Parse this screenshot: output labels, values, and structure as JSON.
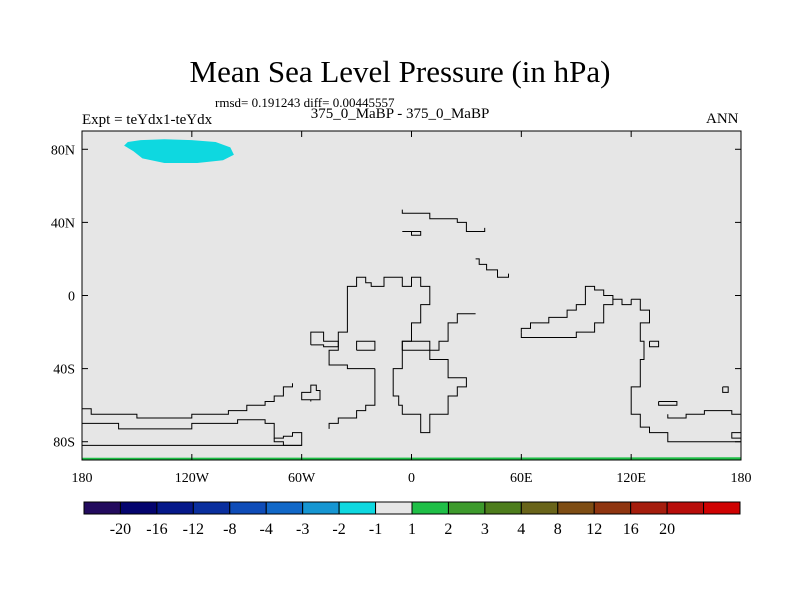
{
  "title": "Mean Sea Level Pressure (in hPa)",
  "stats": "rmsd= 0.191243 diff= 0.00445557",
  "left_label": "Expt = teYdx1-teYdx",
  "center_label": "375_0_MaBP - 375_0_MaBP",
  "right_label": "ANN",
  "chart_data": {
    "type": "heatmap",
    "title": "Mean Sea Level Pressure (in hPa)",
    "xlim": [
      -180,
      180
    ],
    "ylim": [
      -90,
      90
    ],
    "x_ticks": [
      {
        "value": -180,
        "label": "180"
      },
      {
        "value": -120,
        "label": "120W"
      },
      {
        "value": -60,
        "label": "60W"
      },
      {
        "value": 0,
        "label": "0"
      },
      {
        "value": 60,
        "label": "60E"
      },
      {
        "value": 120,
        "label": "120E"
      },
      {
        "value": 180,
        "label": "180"
      }
    ],
    "y_ticks": [
      {
        "value": 80,
        "label": "80N"
      },
      {
        "value": 40,
        "label": "40N"
      },
      {
        "value": 0,
        "label": "0"
      },
      {
        "value": -40,
        "label": "40S"
      },
      {
        "value": -80,
        "label": "80S"
      }
    ],
    "background_color": "#e6e6e6",
    "colorbar": {
      "colors": [
        "#230b5e",
        "#04046e",
        "#05188a",
        "#0a2f9e",
        "#0e4cb8",
        "#1168c8",
        "#1696d2",
        "#0ed8e0",
        "#e6e6e6",
        "#1fbf47",
        "#3d9a2c",
        "#4d7d1c",
        "#69641a",
        "#7e4d14",
        "#8f3510",
        "#a51d0d",
        "#b80d0a",
        "#cf0202"
      ],
      "labels": [
        "-20",
        "-16",
        "-12",
        "-8",
        "-4",
        "-3",
        "-2",
        "-1",
        "1",
        "2",
        "3",
        "4",
        "8",
        "12",
        "16",
        "20"
      ]
    },
    "regions": [
      {
        "label": "-2 to -1",
        "color": "#0ed8e0",
        "outline": [
          [
            -155,
            84
          ],
          [
            -148,
            85
          ],
          [
            -135,
            85.5
          ],
          [
            -120,
            85
          ],
          [
            -107,
            84
          ],
          [
            -99,
            81
          ],
          [
            -97,
            77
          ],
          [
            -103,
            74
          ],
          [
            -117,
            72.5
          ],
          [
            -135,
            72.5
          ],
          [
            -147,
            75
          ],
          [
            -152,
            79
          ],
          [
            -157,
            82
          ]
        ]
      },
      {
        "label": "1 to 2",
        "color": "#1fbf47",
        "outline": [
          [
            -180,
            -90
          ],
          [
            180,
            -90
          ],
          [
            180,
            -88.5
          ],
          [
            -180,
            -88.8
          ]
        ]
      }
    ],
    "coastlines": [
      [
        [
          -5,
          47
        ],
        [
          -5,
          45
        ],
        [
          10,
          45
        ],
        [
          10,
          42
        ],
        [
          25,
          42
        ],
        [
          25,
          40
        ],
        [
          30,
          40
        ],
        [
          30,
          35
        ],
        [
          40,
          35
        ],
        [
          40,
          37
        ]
      ],
      [
        [
          -5,
          35
        ],
        [
          5,
          35
        ],
        [
          5,
          33
        ],
        [
          0,
          33
        ],
        [
          0,
          35
        ]
      ],
      [
        [
          35,
          20
        ],
        [
          37,
          20
        ],
        [
          37,
          17
        ],
        [
          41,
          17
        ],
        [
          41,
          14
        ],
        [
          47,
          14
        ],
        [
          47,
          10
        ],
        [
          48,
          10
        ],
        [
          53,
          10
        ],
        [
          53,
          12
        ]
      ],
      [
        [
          -20,
          -40
        ],
        [
          -20,
          -60
        ],
        [
          -25,
          -60
        ],
        [
          -25,
          -63
        ],
        [
          -30,
          -63
        ],
        [
          -30,
          -67
        ],
        [
          -40,
          -67
        ],
        [
          -40,
          -70
        ],
        [
          -45,
          -70
        ],
        [
          -45,
          -73
        ]
      ],
      [
        [
          -20,
          -40
        ],
        [
          -35,
          -40
        ],
        [
          -35,
          -38
        ],
        [
          -45,
          -38
        ],
        [
          -45,
          -30
        ],
        [
          -40,
          -30
        ],
        [
          -40,
          -20
        ],
        [
          -35,
          -20
        ],
        [
          -35,
          5
        ],
        [
          -30,
          5
        ],
        [
          -30,
          10
        ],
        [
          -25,
          10
        ],
        [
          -25,
          7
        ],
        [
          -22,
          7
        ],
        [
          -22,
          5
        ],
        [
          -15,
          5
        ],
        [
          -15,
          10
        ],
        [
          -5,
          10
        ],
        [
          -5,
          5
        ],
        [
          0,
          5
        ],
        [
          0,
          10
        ],
        [
          5,
          10
        ],
        [
          5,
          5
        ],
        [
          10,
          5
        ],
        [
          10,
          -5
        ],
        [
          5,
          -5
        ],
        [
          5,
          -15
        ],
        [
          0,
          -15
        ],
        [
          0,
          -25
        ],
        [
          -5,
          -25
        ],
        [
          -5,
          -40
        ],
        [
          -10,
          -40
        ],
        [
          -10,
          -55
        ],
        [
          -7,
          -55
        ],
        [
          -7,
          -60
        ],
        [
          -5,
          -60
        ],
        [
          -5,
          -65
        ],
        [
          5,
          -65
        ],
        [
          5,
          -75
        ],
        [
          10,
          -75
        ],
        [
          10,
          -65
        ],
        [
          20,
          -65
        ],
        [
          20,
          -55
        ],
        [
          25,
          -55
        ],
        [
          25,
          -50
        ],
        [
          30,
          -50
        ],
        [
          30,
          -45
        ],
        [
          20,
          -45
        ],
        [
          20,
          -35
        ],
        [
          10,
          -35
        ],
        [
          10,
          -30
        ],
        [
          15,
          -30
        ],
        [
          15,
          -25
        ],
        [
          20,
          -25
        ],
        [
          20,
          -15
        ],
        [
          25,
          -15
        ],
        [
          25,
          -10
        ],
        [
          35,
          -10
        ]
      ],
      [
        [
          -55,
          -27
        ],
        [
          -55,
          -20
        ],
        [
          -48,
          -20
        ],
        [
          -48,
          -25
        ],
        [
          -40,
          -25
        ],
        [
          -40,
          -28
        ],
        [
          -48,
          -28
        ],
        [
          -48,
          -27
        ],
        [
          -55,
          -27
        ]
      ],
      [
        [
          -5,
          -30
        ],
        [
          -5,
          -25
        ],
        [
          10,
          -25
        ],
        [
          10,
          -30
        ],
        [
          -5,
          -30
        ]
      ],
      [
        [
          -30,
          -30
        ],
        [
          -30,
          -25
        ],
        [
          -20,
          -25
        ],
        [
          -20,
          -30
        ],
        [
          -30,
          -30
        ]
      ],
      [
        [
          60,
          -20
        ],
        [
          60,
          -23
        ],
        [
          90,
          -23
        ],
        [
          90,
          -20
        ],
        [
          100,
          -20
        ],
        [
          100,
          -15
        ],
        [
          105,
          -15
        ],
        [
          105,
          -5
        ],
        [
          110,
          -5
        ],
        [
          110,
          -2
        ],
        [
          115,
          -2
        ],
        [
          115,
          -5
        ],
        [
          120,
          -5
        ],
        [
          120,
          -2
        ]
      ],
      [
        [
          60,
          -20
        ],
        [
          60,
          -18
        ],
        [
          65,
          -18
        ],
        [
          65,
          -15
        ],
        [
          75,
          -15
        ],
        [
          75,
          -12
        ],
        [
          85,
          -12
        ],
        [
          85,
          -8
        ],
        [
          90,
          -8
        ],
        [
          90,
          -5
        ],
        [
          95,
          -5
        ],
        [
          95,
          5
        ],
        [
          100,
          5
        ],
        [
          100,
          3
        ],
        [
          105,
          3
        ],
        [
          105,
          0
        ],
        [
          110,
          0
        ],
        [
          110,
          -2
        ]
      ],
      [
        [
          120,
          -2
        ],
        [
          125,
          -2
        ],
        [
          125,
          -8
        ],
        [
          130,
          -8
        ],
        [
          130,
          -15
        ],
        [
          125,
          -15
        ],
        [
          125,
          -25
        ],
        [
          127,
          -25
        ],
        [
          127,
          -35
        ],
        [
          125,
          -35
        ],
        [
          125,
          -50
        ],
        [
          120,
          -50
        ],
        [
          120,
          -65
        ],
        [
          125,
          -65
        ],
        [
          125,
          -72
        ],
        [
          130,
          -72
        ],
        [
          130,
          -75
        ],
        [
          140,
          -75
        ],
        [
          140,
          -80
        ],
        [
          180,
          -80
        ]
      ],
      [
        [
          130,
          -25
        ],
        [
          130,
          -28
        ],
        [
          135,
          -28
        ],
        [
          135,
          -25
        ],
        [
          130,
          -25
        ]
      ],
      [
        [
          170,
          -50
        ],
        [
          170,
          -53
        ],
        [
          173,
          -53
        ],
        [
          173,
          -50
        ],
        [
          170,
          -50
        ]
      ],
      [
        [
          -55,
          -58
        ],
        [
          -55,
          -57
        ],
        [
          -50,
          -57
        ],
        [
          -50,
          -52
        ],
        [
          -52,
          -52
        ],
        [
          -52,
          -49
        ],
        [
          -55,
          -49
        ],
        [
          -55,
          -53
        ],
        [
          -60,
          -53
        ],
        [
          -60,
          -57
        ],
        [
          -55,
          -57
        ]
      ],
      [
        [
          -180,
          -62
        ],
        [
          -175,
          -62
        ],
        [
          -175,
          -65
        ],
        [
          -150,
          -65
        ],
        [
          -150,
          -67
        ],
        [
          -120,
          -67
        ],
        [
          -120,
          -65
        ],
        [
          -100,
          -65
        ],
        [
          -100,
          -63
        ],
        [
          -90,
          -63
        ],
        [
          -90,
          -60
        ],
        [
          -80,
          -60
        ],
        [
          -80,
          -58
        ],
        [
          -75,
          -58
        ],
        [
          -75,
          -55
        ],
        [
          -70,
          -55
        ],
        [
          -70,
          -50
        ],
        [
          -65,
          -50
        ],
        [
          -65,
          -48
        ]
      ],
      [
        [
          -180,
          -63
        ],
        [
          -180,
          -70
        ],
        [
          -160,
          -70
        ],
        [
          -160,
          -73
        ],
        [
          -120,
          -73
        ],
        [
          -120,
          -70
        ],
        [
          -95,
          -70
        ],
        [
          -95,
          -68
        ],
        [
          -80,
          -68
        ],
        [
          -80,
          -70
        ],
        [
          -75,
          -70
        ],
        [
          -75,
          -78
        ],
        [
          -70,
          -78
        ],
        [
          -70,
          -77
        ],
        [
          -65,
          -77
        ],
        [
          -65,
          -75
        ],
        [
          -60,
          -75
        ],
        [
          -60,
          -82
        ],
        [
          -180,
          -82
        ]
      ],
      [
        [
          -75,
          -78
        ],
        [
          -75,
          -80
        ],
        [
          -70,
          -80
        ],
        [
          -70,
          -82
        ],
        [
          -60,
          -82
        ]
      ],
      [
        [
          140,
          -65
        ],
        [
          140,
          -67
        ],
        [
          150,
          -67
        ],
        [
          150,
          -65
        ],
        [
          160,
          -65
        ],
        [
          160,
          -63
        ],
        [
          175,
          -63
        ],
        [
          175,
          -65
        ],
        [
          180,
          -65
        ],
        [
          180,
          -78
        ],
        [
          175,
          -78
        ],
        [
          175,
          -75
        ],
        [
          180,
          -75
        ]
      ],
      [
        [
          135,
          -58
        ],
        [
          135,
          -60
        ],
        [
          145,
          -60
        ],
        [
          145,
          -58
        ],
        [
          135,
          -58
        ]
      ]
    ]
  }
}
